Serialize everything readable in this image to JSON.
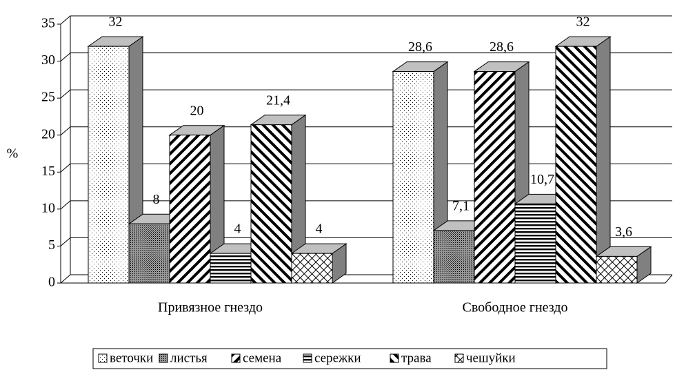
{
  "chart_data": {
    "type": "bar3d",
    "y_label": "%",
    "categories": [
      "Привязное гнездо",
      "Свободное гнездо"
    ],
    "ylim": [
      0,
      35
    ],
    "yticks": [
      0,
      5,
      10,
      15,
      20,
      25,
      30,
      35
    ],
    "grid": true,
    "series": [
      {
        "name": "веточки",
        "pattern": "dots",
        "values": [
          32,
          28.6
        ],
        "value_labels": [
          "32",
          "28,6"
        ]
      },
      {
        "name": "листья",
        "pattern": "dense",
        "values": [
          8,
          7.1
        ],
        "value_labels": [
          "8",
          "7,1"
        ]
      },
      {
        "name": "семена",
        "pattern": "backslash",
        "values": [
          20,
          28.6
        ],
        "value_labels": [
          "20",
          "28,6"
        ]
      },
      {
        "name": "сережки",
        "pattern": "horizontal",
        "values": [
          4,
          10.7
        ],
        "value_labels": [
          "4",
          "10,7"
        ]
      },
      {
        "name": "трава",
        "pattern": "slash",
        "values": [
          21.4,
          32
        ],
        "value_labels": [
          "21,4",
          "32"
        ]
      },
      {
        "name": "чешуйки",
        "pattern": "lattice",
        "values": [
          4,
          3.6
        ],
        "value_labels": [
          "4",
          "3,6"
        ]
      }
    ]
  }
}
